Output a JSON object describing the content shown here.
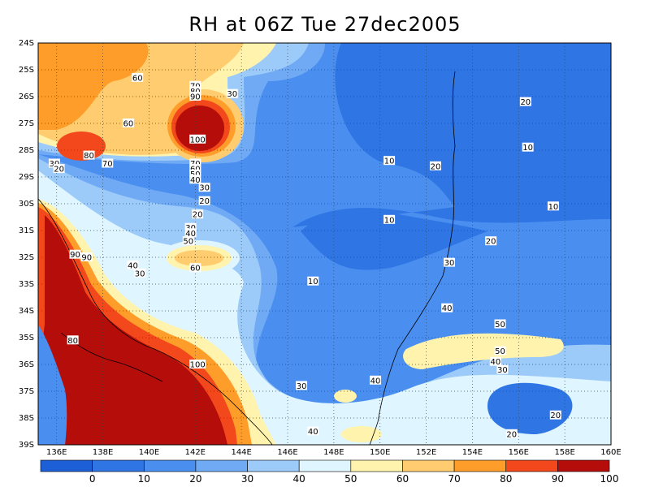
{
  "title": "RH at 06Z Tue 27dec2005",
  "map": {
    "lon_labels": [
      "136E",
      "138E",
      "140E",
      "142E",
      "144E",
      "146E",
      "148E",
      "150E",
      "152E",
      "154E",
      "156E",
      "158E",
      "160E"
    ],
    "lat_labels": [
      "24S",
      "25S",
      "26S",
      "27S",
      "28S",
      "29S",
      "30S",
      "31S",
      "32S",
      "33S",
      "34S",
      "35S",
      "36S",
      "37S",
      "38S",
      "39S"
    ],
    "lon_range": [
      135.2,
      160
    ],
    "lat_range": [
      -24,
      -39
    ],
    "grid": "dotted",
    "coastline": "Eastern Australia",
    "contour_labels": [
      {
        "text": "60",
        "lon": 139.5,
        "lat": -25.3
      },
      {
        "text": "60",
        "lon": 139.1,
        "lat": -27.0
      },
      {
        "text": "30",
        "lon": 143.6,
        "lat": -25.9
      },
      {
        "text": "70",
        "lon": 142.0,
        "lat": -25.6
      },
      {
        "text": "80",
        "lon": 142.0,
        "lat": -25.8
      },
      {
        "text": "90",
        "lon": 142.0,
        "lat": -26.0
      },
      {
        "text": "100",
        "lon": 142.1,
        "lat": -27.6
      },
      {
        "text": "80",
        "lon": 137.4,
        "lat": -28.2
      },
      {
        "text": "70",
        "lon": 138.2,
        "lat": -28.5
      },
      {
        "text": "30",
        "lon": 135.9,
        "lat": -28.5
      },
      {
        "text": "20",
        "lon": 136.1,
        "lat": -28.7
      },
      {
        "text": "70",
        "lon": 142.0,
        "lat": -28.5
      },
      {
        "text": "60",
        "lon": 142.0,
        "lat": -28.7
      },
      {
        "text": "50",
        "lon": 142.0,
        "lat": -28.9
      },
      {
        "text": "40",
        "lon": 142.0,
        "lat": -29.1
      },
      {
        "text": "30",
        "lon": 142.4,
        "lat": -29.4
      },
      {
        "text": "20",
        "lon": 142.4,
        "lat": -29.9
      },
      {
        "text": "20",
        "lon": 142.1,
        "lat": -30.4
      },
      {
        "text": "30",
        "lon": 141.8,
        "lat": -30.9
      },
      {
        "text": "40",
        "lon": 141.8,
        "lat": -31.1
      },
      {
        "text": "50",
        "lon": 141.7,
        "lat": -31.4
      },
      {
        "text": "60",
        "lon": 142.0,
        "lat": -32.4
      },
      {
        "text": "40",
        "lon": 139.3,
        "lat": -32.3
      },
      {
        "text": "30",
        "lon": 139.6,
        "lat": -32.6
      },
      {
        "text": "90",
        "lon": 136.8,
        "lat": -31.9
      },
      {
        "text": "90",
        "lon": 137.3,
        "lat": -32.0
      },
      {
        "text": "10",
        "lon": 150.4,
        "lat": -28.4
      },
      {
        "text": "20",
        "lon": 152.4,
        "lat": -28.6
      },
      {
        "text": "10",
        "lon": 150.4,
        "lat": -30.6
      },
      {
        "text": "10",
        "lon": 156.4,
        "lat": -27.9
      },
      {
        "text": "20",
        "lon": 156.3,
        "lat": -26.2
      },
      {
        "text": "10",
        "lon": 157.5,
        "lat": -30.1
      },
      {
        "text": "20",
        "lon": 154.8,
        "lat": -31.4
      },
      {
        "text": "30",
        "lon": 153.0,
        "lat": -32.2
      },
      {
        "text": "10",
        "lon": 147.1,
        "lat": -32.9
      },
      {
        "text": "40",
        "lon": 152.9,
        "lat": -33.9
      },
      {
        "text": "50",
        "lon": 155.2,
        "lat": -34.5
      },
      {
        "text": "50",
        "lon": 155.2,
        "lat": -35.5
      },
      {
        "text": "40",
        "lon": 155.0,
        "lat": -35.9
      },
      {
        "text": "30",
        "lon": 155.3,
        "lat": -36.2
      },
      {
        "text": "20",
        "lon": 157.6,
        "lat": -37.9
      },
      {
        "text": "20",
        "lon": 155.7,
        "lat": -38.6
      },
      {
        "text": "80",
        "lon": 136.7,
        "lat": -35.1
      },
      {
        "text": "100",
        "lon": 142.1,
        "lat": -36.0
      },
      {
        "text": "30",
        "lon": 146.6,
        "lat": -36.8
      },
      {
        "text": "40",
        "lon": 149.8,
        "lat": -36.6
      },
      {
        "text": "40",
        "lon": 147.1,
        "lat": -38.5
      }
    ]
  },
  "colorbar": {
    "colors": [
      "#1c5fd6",
      "#2f75e3",
      "#4a8ff0",
      "#70aaf4",
      "#9ccbf9",
      "#dff5ff",
      "#fff3ad",
      "#ffcd70",
      "#ff9d2b",
      "#f2481c",
      "#b50d0a"
    ],
    "labels": [
      "0",
      "10",
      "20",
      "30",
      "40",
      "50",
      "60",
      "70",
      "80",
      "90",
      "100"
    ]
  }
}
